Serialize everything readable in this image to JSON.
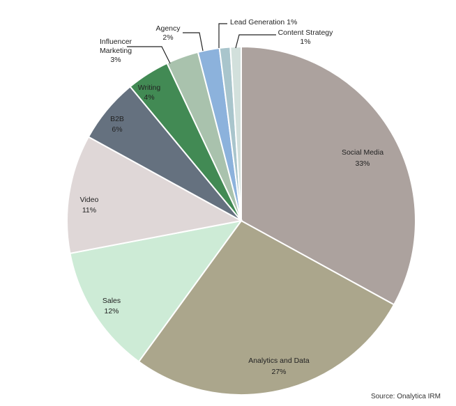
{
  "chart_data": {
    "type": "pie",
    "title": "",
    "slices": [
      {
        "label": "Social Media",
        "percent_label": "33%",
        "value": 33,
        "color": "#aca29e"
      },
      {
        "label": "Analytics and Data",
        "percent_label": "27%",
        "value": 27,
        "color": "#aba68c"
      },
      {
        "label": "Sales",
        "percent_label": "12%",
        "value": 12,
        "color": "#cdebd6"
      },
      {
        "label": "Video",
        "percent_label": "11%",
        "value": 11,
        "color": "#dfd7d7"
      },
      {
        "label": "B2B",
        "percent_label": "6%",
        "value": 6,
        "color": "#65717f"
      },
      {
        "label": "Writing",
        "percent_label": "4%",
        "value": 4,
        "color": "#428a54"
      },
      {
        "label": "Influencer Marketing",
        "percent_label": "3%",
        "value": 3,
        "color": "#a9c2ad"
      },
      {
        "label": "Agency",
        "percent_label": "2%",
        "value": 2,
        "color": "#8cb2dc"
      },
      {
        "label": "Lead Generation",
        "percent_label": "1%",
        "value": 1,
        "color": "#a9c5cc"
      },
      {
        "label": "Content Strategy",
        "percent_label": "1%",
        "value": 1,
        "color": "#d2e0dc"
      }
    ],
    "source": "Source: Onalytica IRM"
  }
}
